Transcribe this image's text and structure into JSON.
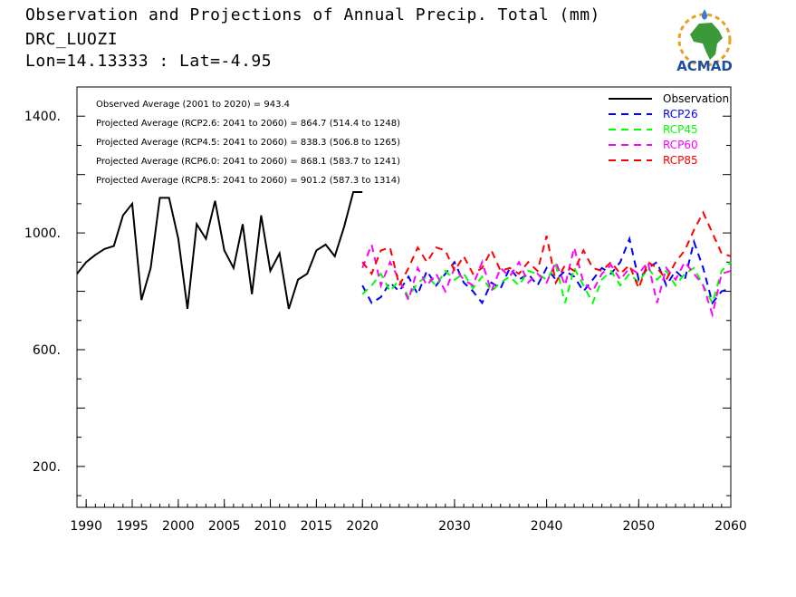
{
  "header": {
    "line1": "Observation and Projections of Annual Precip. Total (mm)",
    "line2": "DRC_LUOZI",
    "line3": "Lon=14.13333 : Lat=-4.95"
  },
  "logo": {
    "text": "ACMAD"
  },
  "chart_data": {
    "type": "line",
    "xlim": [
      1989,
      2060
    ],
    "ylim": [
      60,
      1500
    ],
    "x_ticks_labeled": [
      1990,
      1995,
      2000,
      2005,
      2010,
      2015,
      2020,
      2030,
      2040,
      2050,
      2060
    ],
    "y_ticks_labeled": [
      200,
      600,
      1000,
      1400
    ],
    "y_tick_labels": [
      "200.",
      "600.",
      "1000.",
      "1400."
    ],
    "annotations": [
      "Observed Average (2001 to 2020) = 943.4",
      "Projected Average (RCP2.6: 2041 to 2060) = 864.7 (514.4 to 1248)",
      "Projected Average (RCP4.5: 2041 to 2060) = 838.3 (506.8 to 1265)",
      "Projected Average (RCP6.0: 2041 to 2060) = 868.1 (583.7 to 1241)",
      "Projected Average (RCP8.5: 2041 to 2060) = 901.2 (587.3 to 1314)"
    ],
    "legend_position": "top-right",
    "series": [
      {
        "name": "Observation",
        "color": "#000000",
        "dash": "solid",
        "x": [
          1989,
          1990,
          1991,
          1992,
          1993,
          1994,
          1995,
          1996,
          1997,
          1998,
          1999,
          2000,
          2001,
          2002,
          2003,
          2004,
          2005,
          2006,
          2007,
          2008,
          2009,
          2010,
          2011,
          2012,
          2013,
          2014,
          2015,
          2016,
          2017,
          2018,
          2019,
          2020
        ],
        "values": [
          860,
          900,
          925,
          945,
          955,
          1060,
          1100,
          770,
          880,
          1120,
          1120,
          980,
          740,
          1030,
          980,
          1110,
          940,
          880,
          1030,
          790,
          1060,
          870,
          930,
          740,
          840,
          860,
          940,
          960,
          920,
          1020,
          1140,
          1140
        ]
      },
      {
        "name": "RCP26",
        "color": "#0000ff",
        "dash": "dashed",
        "x": [
          2020,
          2021,
          2022,
          2023,
          2024,
          2025,
          2026,
          2027,
          2028,
          2029,
          2030,
          2031,
          2032,
          2033,
          2034,
          2035,
          2036,
          2037,
          2038,
          2039,
          2040,
          2041,
          2042,
          2043,
          2044,
          2045,
          2046,
          2047,
          2048,
          2049,
          2050,
          2051,
          2052,
          2053,
          2054,
          2055,
          2056,
          2057,
          2058,
          2059,
          2060
        ],
        "values": [
          820,
          760,
          780,
          830,
          800,
          850,
          790,
          870,
          820,
          860,
          900,
          830,
          800,
          760,
          830,
          810,
          880,
          840,
          860,
          820,
          880,
          840,
          870,
          850,
          800,
          840,
          880,
          860,
          900,
          980,
          840,
          880,
          900,
          820,
          870,
          840,
          970,
          880,
          760,
          800,
          810
        ]
      },
      {
        "name": "RCP45",
        "color": "#00ff00",
        "dash": "dashed",
        "x": [
          2020,
          2021,
          2022,
          2023,
          2024,
          2025,
          2026,
          2027,
          2028,
          2029,
          2030,
          2031,
          2032,
          2033,
          2034,
          2035,
          2036,
          2037,
          2038,
          2039,
          2040,
          2041,
          2042,
          2043,
          2044,
          2045,
          2046,
          2047,
          2048,
          2049,
          2050,
          2051,
          2052,
          2053,
          2054,
          2055,
          2056,
          2057,
          2058,
          2059,
          2060
        ],
        "values": [
          790,
          820,
          860,
          800,
          840,
          780,
          830,
          850,
          820,
          870,
          840,
          860,
          810,
          850,
          800,
          830,
          850,
          820,
          870,
          860,
          840,
          890,
          760,
          880,
          820,
          760,
          840,
          870,
          820,
          860,
          830,
          880,
          840,
          870,
          820,
          860,
          880,
          820,
          760,
          870,
          900
        ]
      },
      {
        "name": "RCP60",
        "color": "#ff00ff",
        "dash": "dashed",
        "x": [
          2020,
          2021,
          2022,
          2023,
          2024,
          2025,
          2026,
          2027,
          2028,
          2029,
          2030,
          2031,
          2032,
          2033,
          2034,
          2035,
          2036,
          2037,
          2038,
          2039,
          2040,
          2041,
          2042,
          2043,
          2044,
          2045,
          2046,
          2047,
          2048,
          2049,
          2050,
          2051,
          2052,
          2053,
          2054,
          2055,
          2056,
          2057,
          2058,
          2059,
          2060
        ],
        "values": [
          880,
          960,
          820,
          900,
          840,
          770,
          880,
          820,
          860,
          800,
          880,
          840,
          820,
          900,
          800,
          880,
          850,
          900,
          830,
          860,
          830,
          900,
          820,
          950,
          830,
          800,
          860,
          890,
          840,
          880,
          860,
          900,
          760,
          880,
          840,
          900,
          860,
          820,
          720,
          860,
          870
        ]
      },
      {
        "name": "RCP85",
        "color": "#ff0000",
        "dash": "dashed",
        "x": [
          2020,
          2021,
          2022,
          2023,
          2024,
          2025,
          2026,
          2027,
          2028,
          2029,
          2030,
          2031,
          2032,
          2033,
          2034,
          2035,
          2036,
          2037,
          2038,
          2039,
          2040,
          2041,
          2042,
          2043,
          2044,
          2045,
          2046,
          2047,
          2048,
          2049,
          2050,
          2051,
          2052,
          2053,
          2054,
          2055,
          2056,
          2057,
          2058,
          2059,
          2060
        ],
        "values": [
          900,
          860,
          940,
          950,
          820,
          880,
          950,
          900,
          950,
          940,
          870,
          920,
          860,
          880,
          940,
          870,
          880,
          860,
          900,
          870,
          990,
          830,
          890,
          870,
          940,
          880,
          870,
          900,
          860,
          890,
          810,
          900,
          880,
          840,
          900,
          940,
          1010,
          1070,
          1000,
          930,
          920
        ]
      }
    ]
  }
}
